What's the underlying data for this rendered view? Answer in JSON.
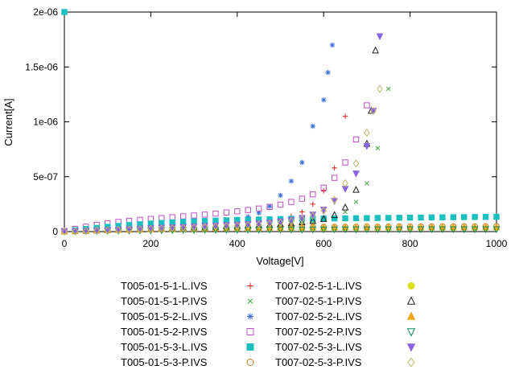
{
  "chart_data": {
    "type": "scatter",
    "title": "",
    "xlabel": "Voltage[V]",
    "ylabel": "Current[A]",
    "xlim": [
      0,
      1000
    ],
    "ylim": [
      0,
      2e-06
    ],
    "xticks": [
      0,
      200,
      400,
      600,
      800,
      1000
    ],
    "xtick_labels": [
      "0",
      "200",
      "400",
      "600",
      "800",
      "1000"
    ],
    "yticks": [
      0,
      5e-07,
      1e-06,
      1.5e-06,
      2e-06
    ],
    "ytick_labels": [
      "0",
      "5e-07",
      "1e-06",
      "1.5e-06",
      "2e-06"
    ],
    "grid": false,
    "legend_position": "below",
    "legend_columns": 2,
    "background": "#ffffff",
    "axis_color": "#000000",
    "series": [
      {
        "name": "T005-01-5-1-L.IVS",
        "marker": "plus",
        "color": "#e02020",
        "x": [
          0,
          25,
          50,
          75,
          100,
          125,
          150,
          175,
          200,
          225,
          250,
          275,
          300,
          325,
          350,
          375,
          400,
          425,
          450,
          475,
          500,
          525,
          550,
          575,
          600,
          625,
          650
        ],
        "y": [
          2e-09,
          6e-09,
          1e-08,
          1.4e-08,
          1.8e-08,
          2.2e-08,
          2.6e-08,
          3e-08,
          3.4e-08,
          3.8e-08,
          4.2e-08,
          4.6e-08,
          5e-08,
          5.5e-08,
          6e-08,
          6.6e-08,
          7.2e-08,
          8e-08,
          9e-08,
          1e-07,
          1.15e-07,
          1.4e-07,
          1.8e-07,
          2.5e-07,
          3.7e-07,
          5.8e-07,
          1.05e-06
        ]
      },
      {
        "name": "T005-01-5-1-P.IVS",
        "marker": "cross",
        "color": "#44aa44",
        "x": [
          0,
          25,
          50,
          75,
          100,
          125,
          150,
          175,
          200,
          225,
          250,
          275,
          300,
          325,
          350,
          375,
          400,
          425,
          450,
          475,
          500,
          525,
          550,
          575,
          600,
          625,
          650,
          675,
          700,
          725,
          750
        ],
        "y": [
          1e-09,
          4e-09,
          7e-09,
          1e-08,
          1.3e-08,
          1.6e-08,
          1.9e-08,
          2.2e-08,
          2.5e-08,
          2.8e-08,
          3.1e-08,
          3.4e-08,
          3.7e-08,
          4e-08,
          4.4e-08,
          4.8e-08,
          5.2e-08,
          5.6e-08,
          6e-08,
          6.5e-08,
          7e-08,
          7.6e-08,
          8.3e-08,
          9.2e-08,
          1.05e-07,
          1.3e-07,
          1.8e-07,
          2.7e-07,
          4.4e-07,
          7.6e-07,
          1.3e-06
        ]
      },
      {
        "name": "T005-01-5-2-L.IVS",
        "marker": "asterisk",
        "color": "#3a6fd8",
        "x": [
          0,
          25,
          50,
          75,
          100,
          125,
          150,
          175,
          200,
          225,
          250,
          275,
          300,
          325,
          350,
          375,
          400,
          425,
          450,
          475,
          500,
          525,
          550,
          575,
          600,
          610,
          620
        ],
        "y": [
          2e-09,
          7e-09,
          1.2e-08,
          1.7e-08,
          2.2e-08,
          2.7e-08,
          3.2e-08,
          3.7e-08,
          4.2e-08,
          4.7e-08,
          5.2e-08,
          5.8e-08,
          6.4e-08,
          7.2e-08,
          8.2e-08,
          9.5e-08,
          1.1e-07,
          1.35e-07,
          1.7e-07,
          2.3e-07,
          3.3e-07,
          4.6e-07,
          6.3e-07,
          9.6e-07,
          1.2e-06,
          1.45e-06,
          1.7e-06
        ]
      },
      {
        "name": "T005-01-5-2-P.IVS",
        "marker": "square-open",
        "color": "#c050c8",
        "x": [
          0,
          25,
          50,
          75,
          100,
          125,
          150,
          175,
          200,
          225,
          250,
          275,
          300,
          325,
          350,
          375,
          400,
          425,
          450,
          475,
          500,
          525,
          550,
          575,
          600,
          625,
          650,
          675,
          700
        ],
        "y": [
          5e-09,
          2.5e-08,
          4.5e-08,
          6.2e-08,
          7.6e-08,
          8.8e-08,
          9.8e-08,
          1.07e-07,
          1.15e-07,
          1.23e-07,
          1.31e-07,
          1.39e-07,
          1.47e-07,
          1.55e-07,
          1.64e-07,
          1.74e-07,
          1.85e-07,
          1.97e-07,
          2.1e-07,
          2.25e-07,
          2.45e-07,
          2.7e-07,
          3e-07,
          3.4e-07,
          4e-07,
          4.9e-07,
          6.3e-07,
          8.4e-07,
          1.15e-06
        ]
      },
      {
        "name": "T005-01-5-3-L.IVS",
        "marker": "square-filled",
        "color": "#18c0c0",
        "x": [
          0,
          25,
          50,
          75,
          100,
          125,
          150,
          175,
          200,
          225,
          250,
          275,
          300,
          325,
          350,
          375,
          400,
          425,
          450,
          475,
          500,
          525,
          550,
          575,
          600,
          625,
          650,
          675,
          700,
          725,
          750,
          775,
          800,
          825,
          850,
          875,
          900,
          925,
          950,
          975,
          1000
        ],
        "y": [
          2e-06,
          1.3e-08,
          2.4e-08,
          3.4e-08,
          4.3e-08,
          5.2e-08,
          6e-08,
          6.7e-08,
          7.3e-08,
          7.9e-08,
          8.4e-08,
          8.9e-08,
          9.3e-08,
          9.7e-08,
          1e-07,
          1.03e-07,
          1.06e-07,
          1.08e-07,
          1.1e-07,
          1.12e-07,
          1.14e-07,
          1.16e-07,
          1.17e-07,
          1.18e-07,
          1.19e-07,
          1.2e-07,
          1.21e-07,
          1.22e-07,
          1.23e-07,
          1.24e-07,
          1.25e-07,
          1.26e-07,
          1.27e-07,
          1.28e-07,
          1.29e-07,
          1.3e-07,
          1.31e-07,
          1.32e-07,
          1.33e-07,
          1.34e-07,
          1.35e-07
        ]
      },
      {
        "name": "T005-01-5-3-P.IVS",
        "marker": "circle-open",
        "color": "#c07818",
        "x": [
          0,
          25,
          50,
          75,
          100,
          125,
          150,
          175,
          200,
          225,
          250,
          275,
          300,
          325,
          350,
          375,
          400,
          425,
          450,
          475,
          500,
          525,
          550,
          575,
          600,
          625,
          650,
          675,
          700,
          725,
          750,
          775,
          800,
          825,
          850,
          875,
          900,
          925,
          950,
          975,
          1000
        ],
        "y": [
          1e-09,
          4e-09,
          8e-09,
          1.1e-08,
          1.4e-08,
          1.7e-08,
          2e-08,
          2.2e-08,
          2.4e-08,
          2.6e-08,
          2.8e-08,
          3e-08,
          3.2e-08,
          3.3e-08,
          3.5e-08,
          3.6e-08,
          3.7e-08,
          3.8e-08,
          3.9e-08,
          4e-08,
          4.1e-08,
          4.2e-08,
          4.3e-08,
          4.35e-08,
          4.4e-08,
          4.45e-08,
          4.5e-08,
          4.55e-08,
          4.6e-08,
          4.65e-08,
          4.7e-08,
          4.75e-08,
          4.8e-08,
          4.83e-08,
          4.86e-08,
          4.89e-08,
          4.92e-08,
          4.95e-08,
          4.97e-08,
          4.99e-08,
          5e-08
        ]
      },
      {
        "name": "T007-02-5-1-L.IVS",
        "marker": "circle-filled",
        "color": "#dede20",
        "x": [
          0,
          25,
          50,
          75,
          100,
          125,
          150,
          175,
          200,
          225,
          250,
          275,
          300,
          325,
          350,
          375,
          400,
          425,
          450,
          475,
          500,
          525,
          550,
          575,
          600,
          625,
          650,
          675,
          700,
          725,
          750,
          775,
          800,
          825,
          850,
          875,
          900,
          925,
          950,
          975,
          1000
        ],
        "y": [
          1e-09,
          3e-09,
          5e-09,
          7e-09,
          9e-09,
          1.1e-08,
          1.3e-08,
          1.45e-08,
          1.6e-08,
          1.7e-08,
          1.8e-08,
          1.9e-08,
          2e-08,
          2.1e-08,
          2.2e-08,
          2.25e-08,
          2.3e-08,
          2.35e-08,
          2.4e-08,
          2.45e-08,
          2.5e-08,
          2.55e-08,
          2.6e-08,
          2.62e-08,
          2.65e-08,
          2.68e-08,
          2.7e-08,
          2.72e-08,
          2.75e-08,
          2.77e-08,
          2.8e-08,
          2.82e-08,
          2.85e-08,
          2.87e-08,
          2.9e-08,
          2.92e-08,
          2.94e-08,
          2.96e-08,
          2.97e-08,
          2.99e-08,
          3e-08
        ]
      },
      {
        "name": "T007-02-5-1-P.IVS",
        "marker": "triangle-up-open",
        "color": "#202020",
        "x": [
          0,
          25,
          50,
          75,
          100,
          125,
          150,
          175,
          200,
          225,
          250,
          275,
          300,
          325,
          350,
          375,
          400,
          425,
          450,
          475,
          500,
          525,
          550,
          575,
          600,
          625,
          650,
          675,
          700,
          710,
          720
        ],
        "y": [
          1e-09,
          3e-09,
          6e-09,
          9e-09,
          1.2e-08,
          1.5e-08,
          1.8e-08,
          2.1e-08,
          2.4e-08,
          2.7e-08,
          3e-08,
          3.3e-08,
          3.6e-08,
          3.9e-08,
          4.2e-08,
          4.5e-08,
          4.9e-08,
          5.3e-08,
          5.7e-08,
          6.2e-08,
          6.8e-08,
          7.5e-08,
          8.4e-08,
          9.6e-08,
          1.15e-07,
          1.5e-07,
          2.2e-07,
          3.8e-07,
          8e-07,
          1.1e-06,
          1.65e-06
        ]
      },
      {
        "name": "T007-02-5-2-L.IVS",
        "marker": "triangle-up-filled",
        "color": "#f0a818",
        "x": [
          0,
          25,
          50,
          75,
          100,
          125,
          150,
          175,
          200,
          225,
          250,
          275,
          300,
          325,
          350,
          375,
          400,
          425,
          450,
          475,
          500,
          525,
          550,
          575,
          600,
          625,
          650,
          675,
          700,
          725,
          750,
          775,
          800,
          825,
          850,
          875,
          900,
          925,
          950,
          975,
          1000
        ],
        "y": [
          1e-09,
          4e-09,
          7e-09,
          1e-08,
          1.2e-08,
          1.4e-08,
          1.6e-08,
          1.8e-08,
          2e-08,
          2.2e-08,
          2.4e-08,
          2.6e-08,
          2.8e-08,
          2.9e-08,
          3e-08,
          3.1e-08,
          3.2e-08,
          3.3e-08,
          3.4e-08,
          3.5e-08,
          3.55e-08,
          3.6e-08,
          3.65e-08,
          3.7e-08,
          3.72e-08,
          3.75e-08,
          3.78e-08,
          3.8e-08,
          3.82e-08,
          3.85e-08,
          3.87e-08,
          3.9e-08,
          3.92e-08,
          3.94e-08,
          3.95e-08,
          3.96e-08,
          3.97e-08,
          3.98e-08,
          3.99e-08,
          4e-08,
          4e-08
        ]
      },
      {
        "name": "T007-02-5-2-P.IVS",
        "marker": "triangle-down-open",
        "color": "#108858",
        "x": [
          0,
          25,
          50,
          75,
          100,
          125,
          150,
          175,
          200,
          225,
          250,
          275,
          300,
          325,
          350,
          375,
          400,
          425,
          450,
          475,
          500,
          525,
          550,
          575,
          600,
          625,
          650,
          675,
          700,
          725,
          750,
          775,
          800,
          825,
          850,
          875,
          900,
          925,
          950,
          975,
          1000
        ],
        "y": [
          5e-10,
          2e-09,
          4e-09,
          5.5e-09,
          7e-09,
          8.5e-09,
          1e-08,
          1.1e-08,
          1.2e-08,
          1.3e-08,
          1.4e-08,
          1.5e-08,
          1.55e-08,
          1.6e-08,
          1.65e-08,
          1.7e-08,
          1.75e-08,
          1.8e-08,
          1.82e-08,
          1.85e-08,
          1.88e-08,
          1.9e-08,
          1.92e-08,
          1.95e-08,
          1.97e-08,
          2e-08,
          2.02e-08,
          2.04e-08,
          2.06e-08,
          2.08e-08,
          2.1e-08,
          2.12e-08,
          2.13e-08,
          2.15e-08,
          2.16e-08,
          2.17e-08,
          2.18e-08,
          2.19e-08,
          2.2e-08,
          2.2e-08,
          2.2e-08
        ]
      },
      {
        "name": "T007-02-5-3-L.IVS",
        "marker": "triangle-down-filled",
        "color": "#8a63e0",
        "x": [
          0,
          25,
          50,
          75,
          100,
          125,
          150,
          175,
          200,
          225,
          250,
          275,
          300,
          325,
          350,
          375,
          400,
          425,
          450,
          475,
          500,
          525,
          550,
          575,
          600,
          625,
          650,
          675,
          700,
          715,
          730
        ],
        "y": [
          1e-09,
          4e-09,
          8e-09,
          1.2e-08,
          1.6e-08,
          2e-08,
          2.4e-08,
          2.8e-08,
          3.2e-08,
          3.6e-08,
          4e-08,
          4.4e-08,
          4.8e-08,
          5.2e-08,
          5.6e-08,
          6e-08,
          6.5e-08,
          7e-08,
          7.6e-08,
          8.3e-08,
          9.2e-08,
          1.05e-07,
          1.25e-07,
          1.55e-07,
          2e-07,
          2.8e-07,
          3.9e-07,
          5.3e-07,
          7.8e-07,
          1.1e-06,
          1.78e-06
        ]
      },
      {
        "name": "T007-02-5-3-P.IVS",
        "marker": "diamond-open",
        "color": "#bdb76b",
        "x": [
          0,
          25,
          50,
          75,
          100,
          125,
          150,
          175,
          200,
          225,
          250,
          275,
          300,
          325,
          350,
          375,
          400,
          425,
          450,
          475,
          500,
          525,
          550,
          575,
          600,
          625,
          650,
          675,
          700,
          715,
          730
        ],
        "y": [
          1e-09,
          4e-09,
          7e-09,
          1e-08,
          1.3e-08,
          1.6e-08,
          1.9e-08,
          2.2e-08,
          2.5e-08,
          2.8e-08,
          3.1e-08,
          3.4e-08,
          3.8e-08,
          4.2e-08,
          4.6e-08,
          5e-08,
          5.5e-08,
          6e-08,
          6.6e-08,
          7.3e-08,
          8.2e-08,
          9.5e-08,
          1.15e-07,
          1.45e-07,
          1.9e-07,
          2.9e-07,
          4.4e-07,
          6.2e-07,
          9e-07,
          1.1e-06,
          1.3e-06
        ]
      }
    ]
  }
}
